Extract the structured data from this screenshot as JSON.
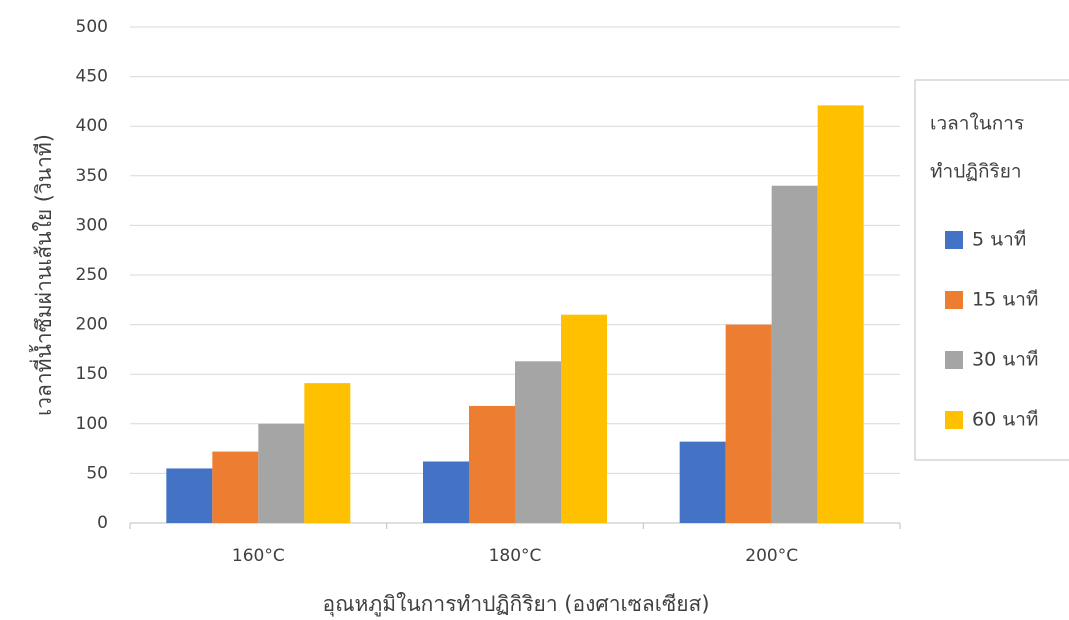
{
  "chart_data": {
    "type": "bar",
    "categories": [
      "160°C",
      "180°C",
      "200°C"
    ],
    "series": [
      {
        "name": "5 นาที",
        "color": "#4472c4",
        "values": [
          55,
          62,
          82
        ]
      },
      {
        "name": "15 นาที",
        "color": "#ed7d31",
        "values": [
          72,
          118,
          200
        ]
      },
      {
        "name": "30 นาที",
        "color": "#a5a5a5",
        "values": [
          100,
          163,
          340
        ]
      },
      {
        "name": "60 นาที",
        "color": "#ffc000",
        "values": [
          141,
          210,
          421
        ]
      }
    ],
    "ylim": [
      0,
      500
    ],
    "yticks": [
      0,
      50,
      100,
      150,
      200,
      250,
      300,
      350,
      400,
      450,
      500
    ],
    "grid": true,
    "xlabel": "อุณหภูมิในการทำปฏิกิริยา (องศาเซลเซียส)",
    "ylabel": "เวลาที่น้ำซึมผ่านเส้นใย (วินาที)",
    "legend_title": [
      "เวลาในการ",
      "ทำปฏิกิริยา"
    ],
    "legend_position": "right"
  }
}
